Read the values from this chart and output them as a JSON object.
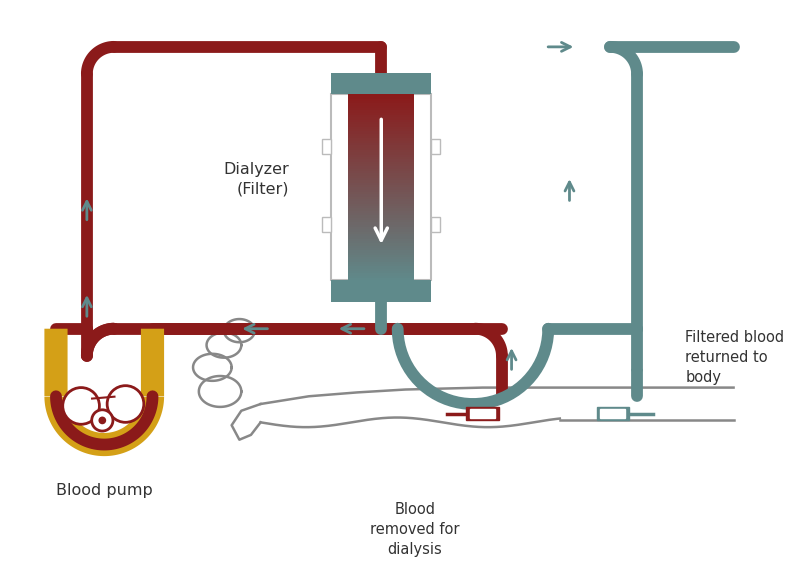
{
  "bg_color": "#ffffff",
  "dark_red": "#8B1A1A",
  "teal": "#5F8A8B",
  "gold": "#D4A017",
  "text_color": "#333333",
  "figsize": [
    8.0,
    5.86
  ],
  "dpi": 100,
  "labels": {
    "dialyzer": "Dialyzer\n(Filter)",
    "pump": "Blood pump",
    "filtered": "Filtered blood\nreturned to\nbody",
    "removed": "Blood\nremoved for\ndialysis"
  },
  "tube_lw": 8.5
}
